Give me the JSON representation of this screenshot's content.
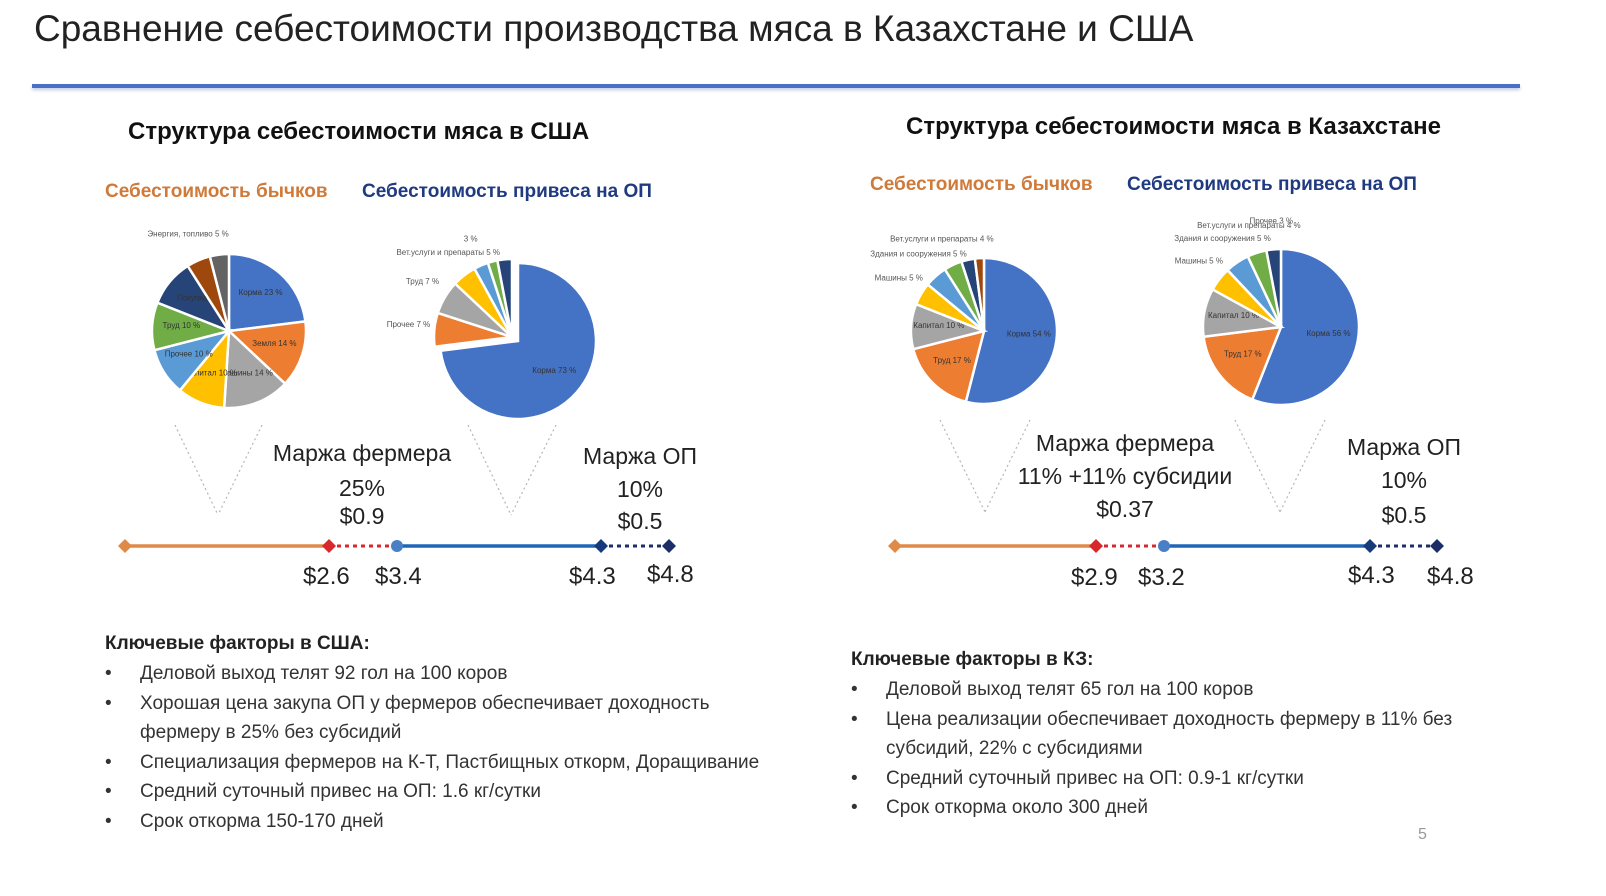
{
  "title": "Сравнение себестоимости производства мяса в Казахстане и США",
  "page_number": "5",
  "colors": {
    "orange_line": "#e08a4a",
    "blue_line": "#1f66b8",
    "navy": "#1b2f66",
    "red_point": "#d9282b",
    "accent_rule": "#4a6fc4"
  },
  "usa": {
    "title": "Структура себестоимости мяса в США",
    "label_calves": "Себестоимость бычков",
    "label_feedlot": "Себестоимость привеса на ОП",
    "margin_farmer": {
      "label": "Маржа фермера",
      "percent": "25%",
      "value": "$0.9"
    },
    "margin_feedlot": {
      "label": "Маржа ОП",
      "percent": "10%",
      "value": "$0.5"
    },
    "prices": [
      "$2.6",
      "$3.4",
      "$4.3",
      "$4.8"
    ],
    "factors_title": "Ключевые факторы в США:",
    "factors": [
      "Деловой выход телят 92 гол на 100 коров",
      "Хорошая цена закупа ОП у фермеров обеспечивает доходность фермеру в 25% без субсидий",
      "Специализация фермеров на К-Т, Пастбищных откорм, Доращивание",
      "Средний суточный привес на ОП: 1.6 кг/сутки",
      "Срок откорма 150-170 дней"
    ]
  },
  "kz": {
    "title": "Структура себестоимости мяса в Казахстане",
    "label_calves": "Себестоимость бычков",
    "label_feedlot": "Себестоимость привеса на ОП",
    "margin_farmer": {
      "label": "Маржа фермера",
      "percent": "11% +11% субсидии",
      "value": "$0.37"
    },
    "margin_feedlot": {
      "label": "Маржа ОП",
      "percent": "10%",
      "value": "$0.5"
    },
    "prices": [
      "$2.9",
      "$3.2",
      "$4.3",
      "$4.8"
    ],
    "factors_title": "Ключевые факторы в КЗ:",
    "factors": [
      "Деловой выход телят 65 гол на 100 коров",
      "Цена реализации обеспечивает доходность фермеру в 11% без субсидий, 22% с субсидиями",
      "Средний суточный привес на ОП: 0.9-1 кг/сутки",
      "Срок откорма около 300 дней"
    ]
  },
  "chart_data": [
    {
      "type": "pie",
      "title": "Себестоимость бычков",
      "series": [
        {
          "values": [
            23,
            14,
            14,
            10,
            10,
            10,
            10,
            5,
            4
          ]
        }
      ],
      "categories": [
        "Корма",
        "Земля",
        "Машины",
        "Капитал",
        "Прочее",
        "Труд",
        "Покупка",
        "Энергия, топливо",
        ""
      ],
      "data_labels": [
        "Корма 23 %",
        "Земля 14 %",
        "Машины 14 %",
        "Капитал 10 %",
        "Прочее 10 %",
        "Труд 10 %",
        "Покупка",
        "Энергия, топливо 5 %",
        ""
      ],
      "colors": [
        "#4472c4",
        "#ed7d31",
        "#a5a5a5",
        "#ffc000",
        "#5b9bd5",
        "#70ad47",
        "#264478",
        "#9e480e",
        "#636363"
      ]
    },
    {
      "type": "pie",
      "title": "Себестоимость привеса на ОП",
      "series": [
        {
          "values": [
            73,
            7,
            7,
            5,
            3,
            2,
            3
          ]
        }
      ],
      "categories": [
        "Корма",
        "Прочее",
        "Труд",
        "Вет.услуги и препараты",
        "",
        "",
        ""
      ],
      "data_labels": [
        "Корма 73 %",
        "Прочее 7 %",
        "Труд 7 %",
        "Вет.услуги и препараты 5 %",
        "3 %",
        "",
        ""
      ],
      "colors": [
        "#4472c4",
        "#ed7d31",
        "#a5a5a5",
        "#ffc000",
        "#5b9bd5",
        "#70ad47",
        "#264478"
      ]
    },
    {
      "type": "pie",
      "title": "Себестоимость бычков",
      "series": [
        {
          "values": [
            54,
            17,
            10,
            5,
            5,
            4,
            3,
            2
          ]
        }
      ],
      "categories": [
        "Корма",
        "Труд",
        "Капитал",
        "Машины",
        "Здания и сооружения",
        "Вет.услуги и препараты",
        "",
        ""
      ],
      "data_labels": [
        "Корма 54 %",
        "Труд 17 %",
        "Капитал 10 %",
        "Машины 5 %",
        "Здания и сооружения 5 %",
        "Вет.услуги и препараты 4 %",
        "",
        ""
      ],
      "colors": [
        "#4472c4",
        "#ed7d31",
        "#a5a5a5",
        "#ffc000",
        "#5b9bd5",
        "#70ad47",
        "#264478",
        "#9e480e"
      ]
    },
    {
      "type": "pie",
      "title": "Себестоимость привеса на ОП",
      "series": [
        {
          "values": [
            56,
            17,
            10,
            5,
            5,
            4,
            3
          ]
        }
      ],
      "categories": [
        "Корма",
        "Труд",
        "Капитал",
        "Машины",
        "Здания и сооружения",
        "Вет.услуги и препараты",
        "Прочее"
      ],
      "data_labels": [
        "Корма 56 %",
        "Труд 17 %",
        "Капитал 10 %",
        "Машины 5 %",
        "Здания и сооружения 5 %",
        "Вет.услуги и препараты 4 %",
        "Прочее 3 %"
      ],
      "colors": [
        "#4472c4",
        "#ed7d31",
        "#a5a5a5",
        "#ffc000",
        "#5b9bd5",
        "#70ad47",
        "#264478"
      ]
    },
    {
      "type": "line",
      "title": "",
      "series": [
        {
          "values": [
            2.6,
            3.4,
            4.3,
            4.8
          ]
        }
      ],
      "categories": [
        "$2.6",
        "$3.4",
        "$4.3",
        "$4.8"
      ]
    },
    {
      "type": "line",
      "title": "",
      "series": [
        {
          "values": [
            2.9,
            3.2,
            4.3,
            4.8
          ]
        }
      ],
      "categories": [
        "$2.9",
        "$3.2",
        "$4.3",
        "$4.8"
      ]
    }
  ]
}
